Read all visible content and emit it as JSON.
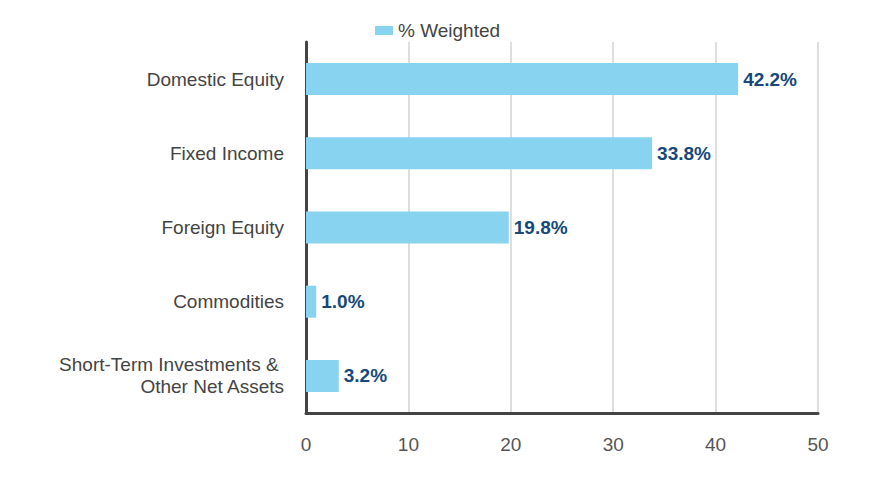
{
  "chart_data": {
    "type": "bar",
    "orientation": "horizontal",
    "categories": [
      "Domestic Equity",
      "Fixed Income",
      "Foreign Equity",
      "Commodities",
      "Short-Term Investments & Other Net Assets"
    ],
    "series": [
      {
        "name": "% Weighted",
        "color": "#87d3f0",
        "values": [
          42.2,
          33.8,
          19.8,
          1.0,
          3.2
        ],
        "value_labels": [
          "42.2%",
          "33.8%",
          "19.8%",
          "1.0%",
          "3.2%"
        ]
      }
    ],
    "xlim": [
      0,
      50
    ],
    "xticks": [
      0,
      10,
      20,
      30,
      40,
      50
    ],
    "grid": true,
    "legend": "top",
    "data_labels": true
  }
}
